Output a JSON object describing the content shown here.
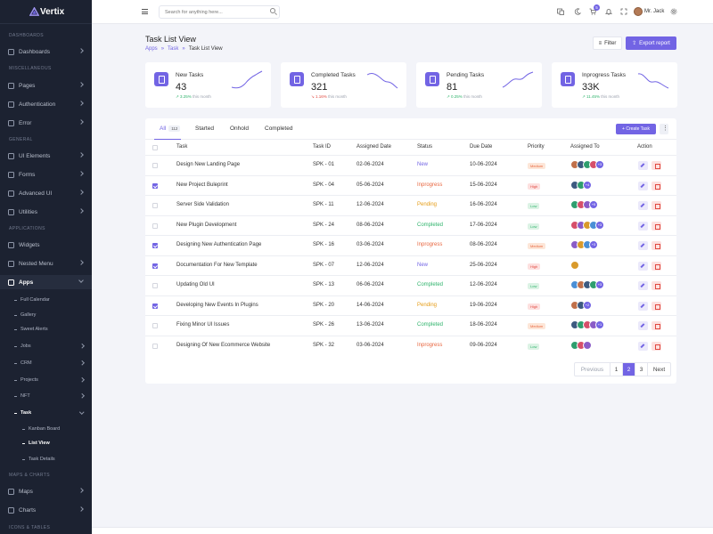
{
  "app": {
    "name": "Vertix"
  },
  "sidebar": {
    "sections": {
      "dashboards": "DASHBOARDS",
      "miscellaneous": "MISCELLANEOUS",
      "general": "GENERAL",
      "applications": "APPLICATIONS",
      "maps_charts": "MAPS & CHARTS",
      "icons_tables": "ICONS & TABLES"
    },
    "items": {
      "dashboards": "Dashboards",
      "pages": "Pages",
      "authentication": "Authentication",
      "error": "Error",
      "ui_elements": "UI Elements",
      "forms": "Forms",
      "advanced_ui": "Advanced UI",
      "utilities": "Utilities",
      "widgets": "Widgets",
      "nested_menu": "Nested Menu",
      "apps": "Apps",
      "maps": "Maps",
      "charts": "Charts"
    },
    "apps_sub": {
      "full_calendar": "Full Calendar",
      "gallery": "Gallery",
      "sweet_alerts": "Sweet Alerts",
      "jobs": "Jobs",
      "crm": "CRM",
      "projects": "Projects",
      "nft": "NFT",
      "task": "Task"
    },
    "task_sub": {
      "kanban": "Kanban Board",
      "list_view": "List View",
      "task_details": "Task Details"
    }
  },
  "header": {
    "search_placeholder": "Search for anything here...",
    "cart_count": "5",
    "user_name": "Mr. Jack"
  },
  "page": {
    "title": "Task List View",
    "breadcrumb": {
      "first": "Apps",
      "sep": "»",
      "second": "Task",
      "current": "Task List View"
    },
    "filter_label": "Filter",
    "export_label": "Export report"
  },
  "stats": [
    {
      "label": "New Tasks",
      "value": "43",
      "change": "3.25%",
      "trend": "up",
      "period": "this month"
    },
    {
      "label": "Completed Tasks",
      "value": "321",
      "change": "1.16%",
      "trend": "down",
      "period": "this month"
    },
    {
      "label": "Pending Tasks",
      "value": "81",
      "change": "0.25%",
      "trend": "up",
      "period": "this month"
    },
    {
      "label": "Inprogress Tasks",
      "value": "33K",
      "change": "11.45%",
      "trend": "up",
      "period": "this month"
    }
  ],
  "tabs": {
    "all": "All",
    "all_count": "112",
    "started": "Started",
    "onhold": "Onhold",
    "completed": "Completed",
    "create_task": "+ Create Task"
  },
  "table": {
    "headers": {
      "task": "Task",
      "task_id": "Task ID",
      "assigned_date": "Assigned Date",
      "status": "Status",
      "due_date": "Due Date",
      "priority": "Priority",
      "assigned_to": "Assigned To",
      "action": "Action"
    },
    "rows": [
      {
        "checked": false,
        "task": "Design New Landing Page",
        "id": "SPK - 01",
        "assigned": "02-06-2024",
        "status": "New",
        "due": "10-06-2024",
        "priority": "Medium",
        "more": "+3"
      },
      {
        "checked": true,
        "task": "New Project Buleprint",
        "id": "SPK - 04",
        "assigned": "05-06-2024",
        "status": "Inprogress",
        "due": "15-06-2024",
        "priority": "High",
        "more": "+4"
      },
      {
        "checked": false,
        "task": "Server Side Validation",
        "id": "SPK - 11",
        "assigned": "12-06-2024",
        "status": "Pending",
        "due": "16-06-2024",
        "priority": "Low",
        "more": "+5"
      },
      {
        "checked": false,
        "task": "New Plugin Development",
        "id": "SPK - 24",
        "assigned": "08-06-2024",
        "status": "Completed",
        "due": "17-06-2024",
        "priority": "Low",
        "more": "+3"
      },
      {
        "checked": true,
        "task": "Designing New Authentication Page",
        "id": "SPK - 16",
        "assigned": "03-06-2024",
        "status": "Inprogress",
        "due": "08-06-2024",
        "priority": "Medium",
        "more": "+3"
      },
      {
        "checked": true,
        "task": "Documentation For New Template",
        "id": "SPK - 07",
        "assigned": "12-06-2024",
        "status": "New",
        "due": "25-06-2024",
        "priority": "High",
        "more": ""
      },
      {
        "checked": false,
        "task": "Updating Old UI",
        "id": "SPK - 13",
        "assigned": "06-06-2024",
        "status": "Completed",
        "due": "12-06-2024",
        "priority": "Low",
        "more": "+3"
      },
      {
        "checked": true,
        "task": "Developing New Events In Plugins",
        "id": "SPK - 20",
        "assigned": "14-06-2024",
        "status": "Pending",
        "due": "19-06-2024",
        "priority": "High",
        "more": "+2"
      },
      {
        "checked": false,
        "task": "Fixing Minor UI Issues",
        "id": "SPK - 26",
        "assigned": "13-06-2024",
        "status": "Completed",
        "due": "18-06-2024",
        "priority": "Medium",
        "more": "+1"
      },
      {
        "checked": false,
        "task": "Designing Of New Ecommerce Website",
        "id": "SPK - 32",
        "assigned": "03-06-2024",
        "status": "Inprogress",
        "due": "09-06-2024",
        "priority": "Low",
        "more": ""
      }
    ]
  },
  "pagination": {
    "prev": "Previous",
    "pages": [
      "1",
      "2",
      "3"
    ],
    "active": "2",
    "next": "Next"
  },
  "colors": {
    "accent": "#7264e4",
    "sidebar_bg": "#1c2231",
    "page_bg": "#f3f4f9"
  }
}
